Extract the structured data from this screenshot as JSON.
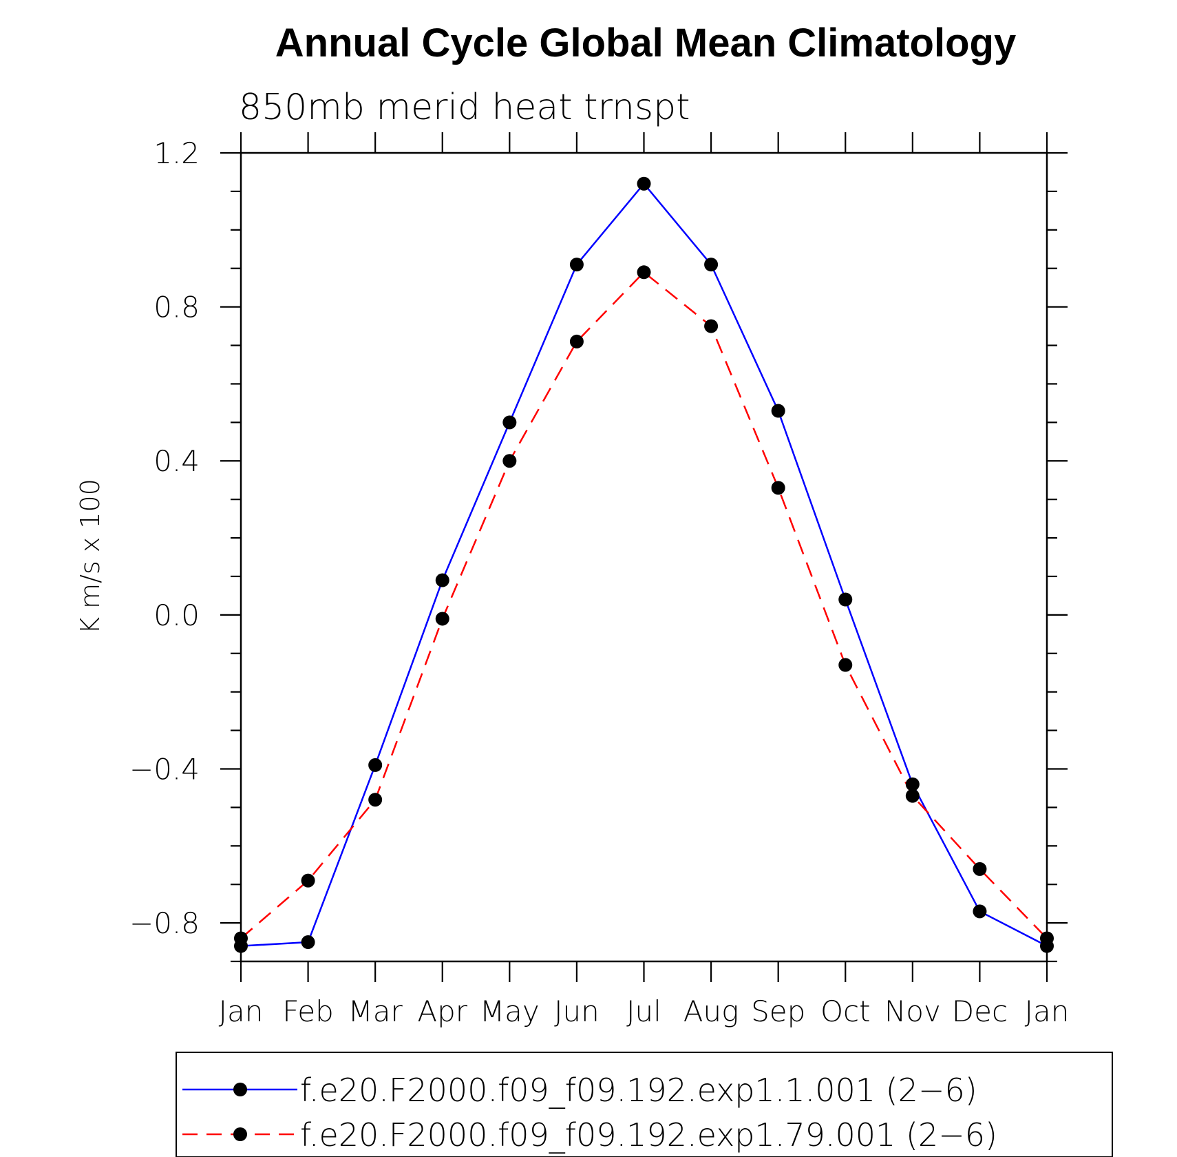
{
  "chart_data": {
    "type": "line",
    "title": "Annual Cycle Global Mean Climatology",
    "subtitle": "850mb merid heat trnspt",
    "xlabel": "",
    "ylabel": "K m/s x 100",
    "categories": [
      "Jan",
      "Feb",
      "Mar",
      "Apr",
      "May",
      "Jun",
      "Jul",
      "Aug",
      "Sep",
      "Oct",
      "Nov",
      "Dec",
      "Jan"
    ],
    "ylim": [
      -0.9,
      1.2
    ],
    "yticks": [
      -0.8,
      -0.4,
      0.0,
      0.4,
      0.8,
      1.2
    ],
    "ytick_labels": [
      "−0.8",
      "−0.4",
      "0.0",
      "0.4",
      "0.8",
      "1.2"
    ],
    "grid": false,
    "legend_position": "bottom",
    "series": [
      {
        "name": "f.e20.F2000.f09_f09.192.exp1.1.001 (2−6)",
        "color": "#0000ff",
        "line_style": "solid",
        "marker": "filled-circle",
        "marker_color": "#000000",
        "values": [
          -0.86,
          -0.85,
          -0.39,
          0.09,
          0.5,
          0.91,
          1.12,
          0.91,
          0.53,
          0.04,
          -0.44,
          -0.77,
          -0.86
        ]
      },
      {
        "name": "f.e20.F2000.f09_f09.192.exp1.79.001 (2−6)",
        "color": "#ff0000",
        "line_style": "dashed",
        "marker": "filled-circle",
        "marker_color": "#000000",
        "values": [
          -0.84,
          -0.69,
          -0.48,
          -0.01,
          0.4,
          0.71,
          0.89,
          0.75,
          0.33,
          -0.13,
          -0.47,
          -0.66,
          -0.84
        ]
      }
    ]
  }
}
